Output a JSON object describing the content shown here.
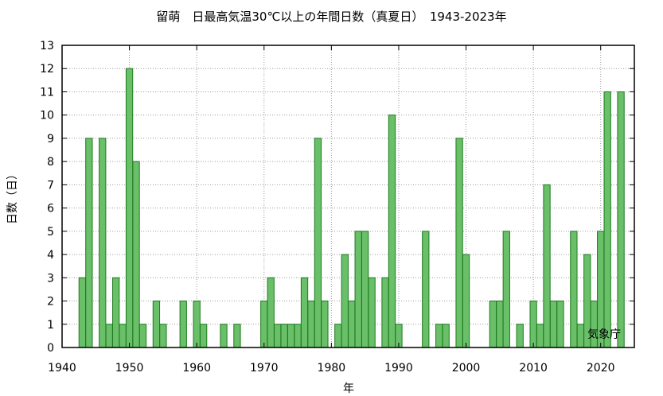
{
  "chart_data": {
    "type": "bar",
    "title": "留萌　日最高気温30℃以上の年間日数（真夏日）　1943-2023年",
    "xlabel": "年",
    "ylabel": "日数（日）",
    "xlim": [
      1940,
      2025
    ],
    "ylim": [
      0,
      13
    ],
    "x_ticks": [
      1940,
      1950,
      1960,
      1970,
      1980,
      1990,
      2000,
      2010,
      2020
    ],
    "y_ticks": [
      0,
      1,
      2,
      3,
      4,
      5,
      6,
      7,
      8,
      9,
      10,
      11,
      12,
      13
    ],
    "grid": true,
    "bar_color": "#6abf69",
    "bar_edge_color": "#1f7a1f",
    "credit": "気象庁",
    "x": [
      1943,
      1944,
      1945,
      1946,
      1947,
      1948,
      1949,
      1950,
      1951,
      1952,
      1953,
      1954,
      1955,
      1956,
      1957,
      1958,
      1959,
      1960,
      1961,
      1962,
      1963,
      1964,
      1965,
      1966,
      1967,
      1968,
      1969,
      1970,
      1971,
      1972,
      1973,
      1974,
      1975,
      1976,
      1977,
      1978,
      1979,
      1980,
      1981,
      1982,
      1983,
      1984,
      1985,
      1986,
      1987,
      1988,
      1989,
      1990,
      1991,
      1992,
      1993,
      1994,
      1995,
      1996,
      1997,
      1998,
      1999,
      2000,
      2001,
      2002,
      2003,
      2004,
      2005,
      2006,
      2007,
      2008,
      2009,
      2010,
      2011,
      2012,
      2013,
      2014,
      2015,
      2016,
      2017,
      2018,
      2019,
      2020,
      2021,
      2022,
      2023
    ],
    "values": [
      3,
      9,
      0,
      9,
      1,
      3,
      1,
      12,
      8,
      1,
      0,
      2,
      1,
      0,
      0,
      2,
      0,
      2,
      1,
      0,
      0,
      1,
      0,
      1,
      0,
      0,
      0,
      2,
      3,
      1,
      1,
      1,
      1,
      3,
      2,
      9,
      2,
      0,
      1,
      4,
      2,
      5,
      5,
      3,
      0,
      3,
      10,
      1,
      0,
      0,
      0,
      5,
      0,
      1,
      1,
      0,
      9,
      4,
      0,
      0,
      0,
      2,
      2,
      5,
      0,
      1,
      0,
      2,
      1,
      7,
      2,
      2,
      0,
      5,
      1,
      4,
      2,
      5,
      11,
      0,
      11
    ]
  }
}
